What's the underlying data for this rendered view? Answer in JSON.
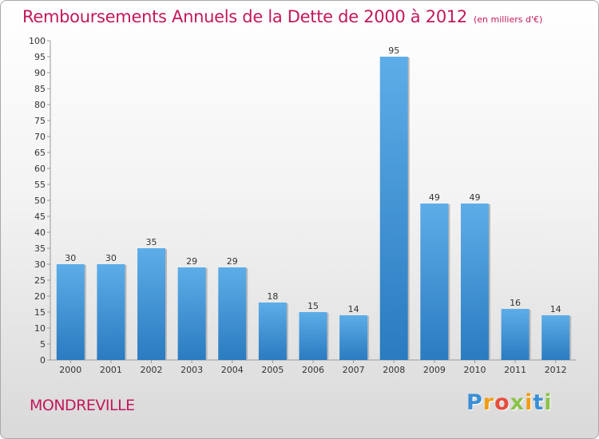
{
  "title": "Remboursements Annuels de la Dette de 2000 à 2012",
  "subtitle": "(en milliers d'€)",
  "place": "MONDREVILLE",
  "logo": {
    "text": "Proxiti",
    "letters": [
      {
        "char": "P",
        "color": "#3a8fd6"
      },
      {
        "char": "r",
        "color": "#f39c12"
      },
      {
        "char": "o",
        "color": "#e74c3c"
      },
      {
        "char": "x",
        "color": "#8bc34a"
      },
      {
        "char": "i",
        "color": "#f39c12"
      },
      {
        "char": "t",
        "color": "#3a8fd6"
      },
      {
        "char": "i",
        "color": "#8bc34a"
      }
    ]
  },
  "colors": {
    "accent": "#c2185b",
    "bar_light": "#5dade8",
    "bar_dark": "#2a7bc0"
  },
  "chart_data": {
    "type": "bar",
    "title": "Remboursements Annuels de la Dette de 2000 à 2012",
    "subtitle": "(en milliers d'€)",
    "xlabel": "",
    "ylabel": "",
    "categories": [
      "2000",
      "2001",
      "2002",
      "2003",
      "2004",
      "2005",
      "2006",
      "2007",
      "2008",
      "2009",
      "2010",
      "2011",
      "2012"
    ],
    "values": [
      30,
      30,
      35,
      29,
      29,
      18,
      15,
      14,
      95,
      49,
      49,
      16,
      14
    ],
    "ylim": [
      0,
      100
    ],
    "yticks": [
      0,
      5,
      10,
      15,
      20,
      25,
      30,
      35,
      40,
      45,
      50,
      55,
      60,
      65,
      70,
      75,
      80,
      85,
      90,
      95,
      100
    ],
    "grid": false,
    "data_labels": true
  }
}
